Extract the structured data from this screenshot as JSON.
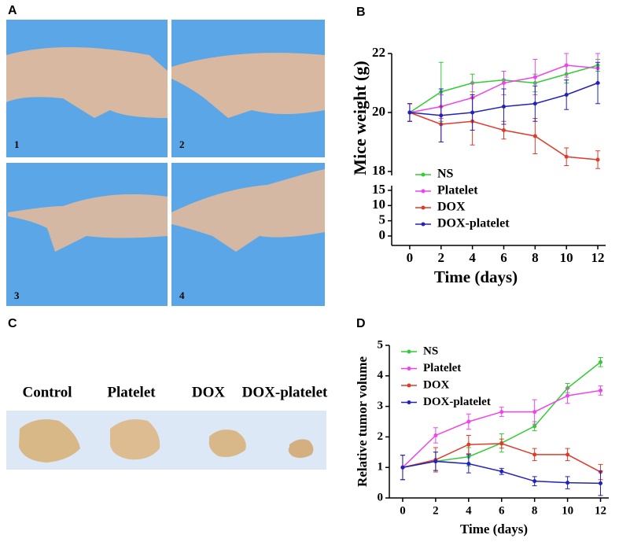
{
  "panel_labels": [
    "A",
    "B",
    "C",
    "D"
  ],
  "photo_labels": [
    "1",
    "2",
    "3",
    "4"
  ],
  "tumor_labels": [
    "Control",
    "Platelet",
    "DOX",
    "DOX-platelet"
  ],
  "chart_data": [
    {
      "type": "line",
      "ylabel": "Mice weight (g)",
      "xlabel": "Time (days)",
      "x": [
        0,
        2,
        4,
        6,
        8,
        10,
        12
      ],
      "xlim": [
        -1,
        12.5
      ],
      "xticks": [
        0,
        2,
        4,
        6,
        8,
        10,
        12
      ],
      "ylim": [
        18,
        22
      ],
      "yticks": [
        18,
        20,
        22
      ],
      "ylim_lower": [
        0,
        15
      ],
      "yticks_lower": [
        0,
        5,
        10,
        15
      ],
      "legend": "lower left",
      "series": [
        {
          "name": "NS",
          "color": "#33cc33",
          "values": [
            20,
            20.7,
            21.0,
            21.1,
            21.0,
            21.3,
            21.6
          ],
          "errors": [
            0.3,
            1.0,
            0.3,
            0.3,
            0.3,
            0.3,
            0.2
          ]
        },
        {
          "name": "Platelet",
          "color": "#ee44ee",
          "values": [
            20,
            20.2,
            20.5,
            21.0,
            21.2,
            21.6,
            21.5
          ],
          "errors": [
            0.3,
            0.4,
            0.5,
            0.4,
            0.6,
            0.4,
            0.5
          ]
        },
        {
          "name": "DOX",
          "color": "#e03a2a",
          "values": [
            20,
            19.6,
            19.7,
            19.4,
            19.2,
            18.5,
            18.4
          ],
          "errors": [
            0.3,
            0.6,
            0.8,
            0.3,
            0.6,
            0.3,
            0.3
          ]
        },
        {
          "name": "DOX-platelet",
          "color": "#2222bb",
          "values": [
            20,
            19.9,
            20.0,
            20.2,
            20.3,
            20.6,
            21.0
          ],
          "errors": [
            0.3,
            0.9,
            0.6,
            0.6,
            0.6,
            0.5,
            0.7
          ]
        }
      ]
    },
    {
      "type": "line",
      "ylabel": "Relative tumor volume",
      "xlabel": "Time (days)",
      "x": [
        0,
        2,
        4,
        6,
        8,
        10,
        12
      ],
      "xlim": [
        -1,
        12.5
      ],
      "xticks": [
        0,
        2,
        4,
        6,
        8,
        10,
        12
      ],
      "ylim": [
        0,
        5
      ],
      "yticks": [
        0,
        1,
        2,
        3,
        4,
        5
      ],
      "legend": "upper left",
      "series": [
        {
          "name": "NS",
          "color": "#33cc33",
          "values": [
            1,
            1.2,
            1.35,
            1.8,
            2.35,
            3.6,
            4.45
          ],
          "errors": [
            0.4,
            0.3,
            0.3,
            0.3,
            0.15,
            0.15,
            0.15
          ]
        },
        {
          "name": "Platelet",
          "color": "#ee44ee",
          "values": [
            1,
            2.05,
            2.5,
            2.82,
            2.82,
            3.35,
            3.52
          ],
          "errors": [
            0.4,
            0.25,
            0.25,
            0.15,
            0.4,
            0.25,
            0.15
          ]
        },
        {
          "name": "DOX",
          "color": "#e03a2a",
          "values": [
            1,
            1.25,
            1.75,
            1.78,
            1.42,
            1.42,
            0.85
          ],
          "errors": [
            0.4,
            0.4,
            0.3,
            0.15,
            0.2,
            0.2,
            0.25
          ]
        },
        {
          "name": "DOX-platelet",
          "color": "#2222bb",
          "values": [
            1,
            1.2,
            1.12,
            0.87,
            0.55,
            0.5,
            0.48
          ],
          "errors": [
            0.4,
            0.3,
            0.3,
            0.1,
            0.15,
            0.2,
            0.4
          ]
        }
      ]
    }
  ]
}
